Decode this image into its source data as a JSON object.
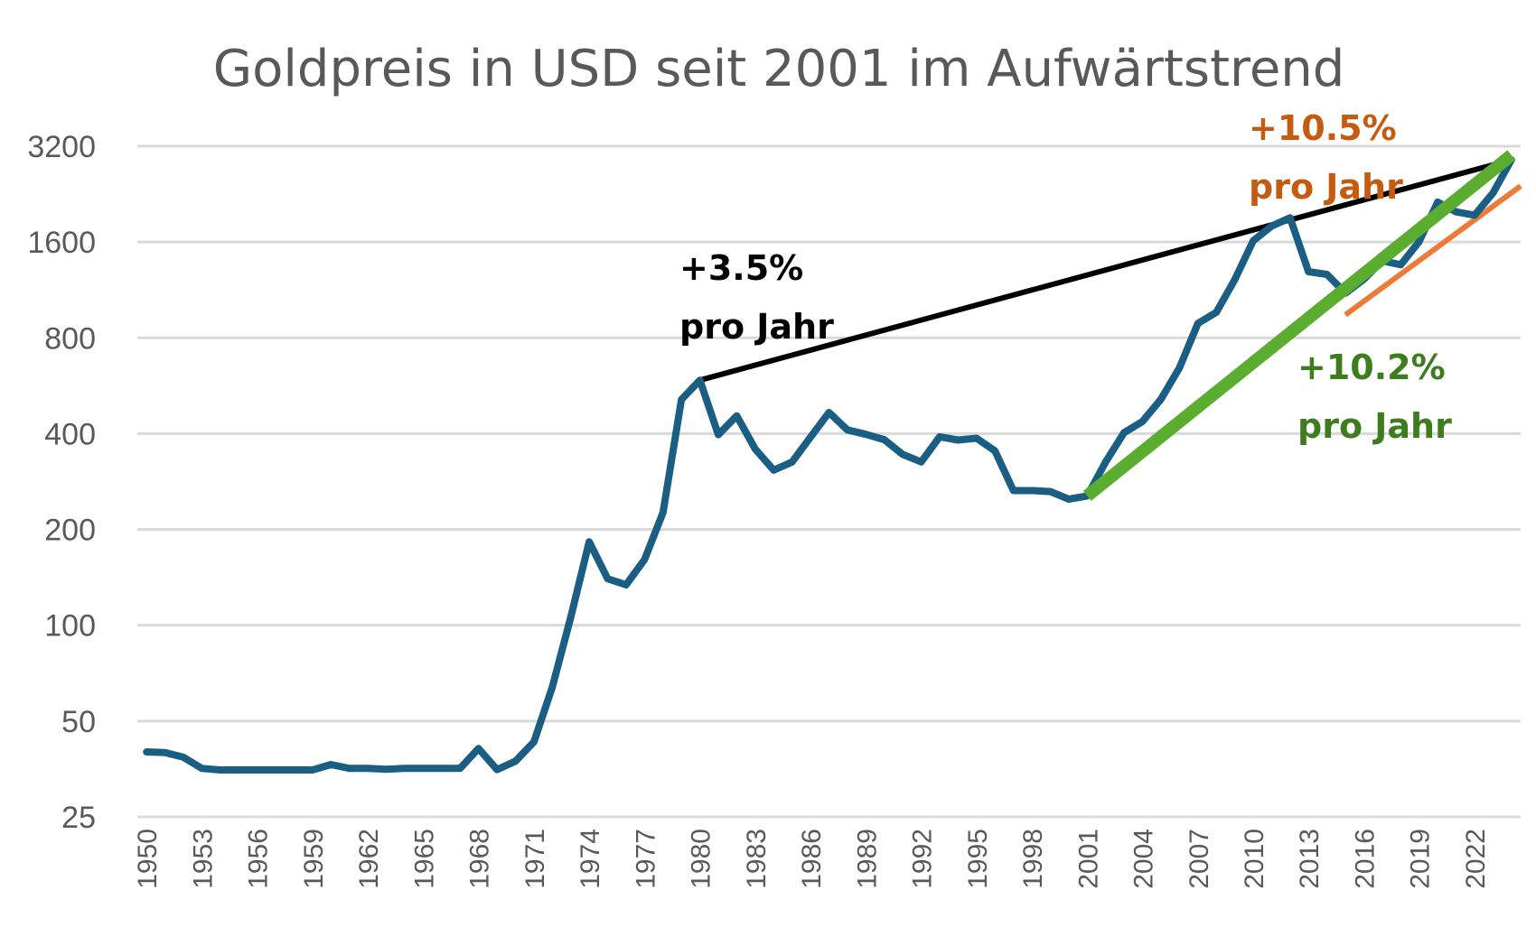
{
  "chart_data": {
    "type": "line",
    "title": "Goldpreis in USD seit 2001 im Aufwärtstrend",
    "xlabel": "",
    "ylabel": "",
    "y_scale": "log2",
    "ylim": [
      25,
      3200
    ],
    "y_ticks": [
      "25",
      "50",
      "100",
      "200",
      "400",
      "800",
      "1600",
      "3200"
    ],
    "x_tick_labels": [
      "1950",
      "1953",
      "1956",
      "1959",
      "1962",
      "1965",
      "1968",
      "1971",
      "1974",
      "1977",
      "1980",
      "1983",
      "1986",
      "1989",
      "1992",
      "1995",
      "1998",
      "2001",
      "2004",
      "2007",
      "2010",
      "2013",
      "2016",
      "2019",
      "2022"
    ],
    "grid": true,
    "series": [
      {
        "color": "#1b5e84",
        "x": [
          1950,
          1951,
          1952,
          1953,
          1954,
          1955,
          1956,
          1957,
          1958,
          1959,
          1960,
          1961,
          1962,
          1963,
          1964,
          1965,
          1966,
          1967,
          1968,
          1969,
          1970,
          1971,
          1972,
          1973,
          1974,
          1975,
          1976,
          1977,
          1978,
          1979,
          1980,
          1981,
          1982,
          1983,
          1984,
          1985,
          1986,
          1987,
          1988,
          1989,
          1990,
          1991,
          1992,
          1993,
          1994,
          1995,
          1996,
          1997,
          1998,
          1999,
          2000,
          2001,
          2002,
          2003,
          2004,
          2005,
          2006,
          2007,
          2008,
          2009,
          2010,
          2011,
          2012,
          2013,
          2014,
          2015,
          2016,
          2017,
          2018,
          2019,
          2020,
          2021,
          2022,
          2023,
          2024
        ],
        "y": [
          40,
          39.8,
          38.5,
          35.5,
          35.1,
          35.1,
          35.1,
          35.1,
          35.1,
          35.1,
          36.5,
          35.5,
          35.5,
          35.3,
          35.5,
          35.5,
          35.5,
          35.5,
          41,
          35.2,
          37.4,
          43,
          64,
          106,
          183,
          140,
          134,
          161,
          226,
          512,
          589,
          397,
          455,
          358,
          307,
          326,
          390,
          466,
          411,
          398,
          383,
          344,
          326,
          391,
          382,
          387,
          353,
          265,
          265,
          263,
          249,
          255,
          326,
          403,
          437,
          513,
          644,
          888,
          962,
          1219,
          1614,
          1795,
          1907,
          1291,
          1266,
          1105,
          1222,
          1396,
          1358,
          1606,
          2136,
          1991,
          1943,
          2282,
          2900
        ]
      }
    ],
    "trend_lines": [
      {
        "color": "#000000",
        "from": [
          1980,
          589
        ],
        "to": [
          2024,
          2900
        ]
      },
      {
        "color": "#5aad2e",
        "from": [
          2001,
          255
        ],
        "to": [
          2024,
          3000
        ]
      },
      {
        "color": "#ef7a38",
        "from": [
          2015,
          945
        ],
        "to": [
          2024.5,
          2400
        ]
      }
    ],
    "annotations": [
      {
        "line1": "+3.5%",
        "line2": "pro Jahr",
        "color": "#000000"
      },
      {
        "line1": "+10.5%",
        "line2": "pro Jahr",
        "color": "#c55a11"
      },
      {
        "line1": "+10.2%",
        "line2": "pro Jahr",
        "color": "#3d7d1e"
      }
    ]
  }
}
